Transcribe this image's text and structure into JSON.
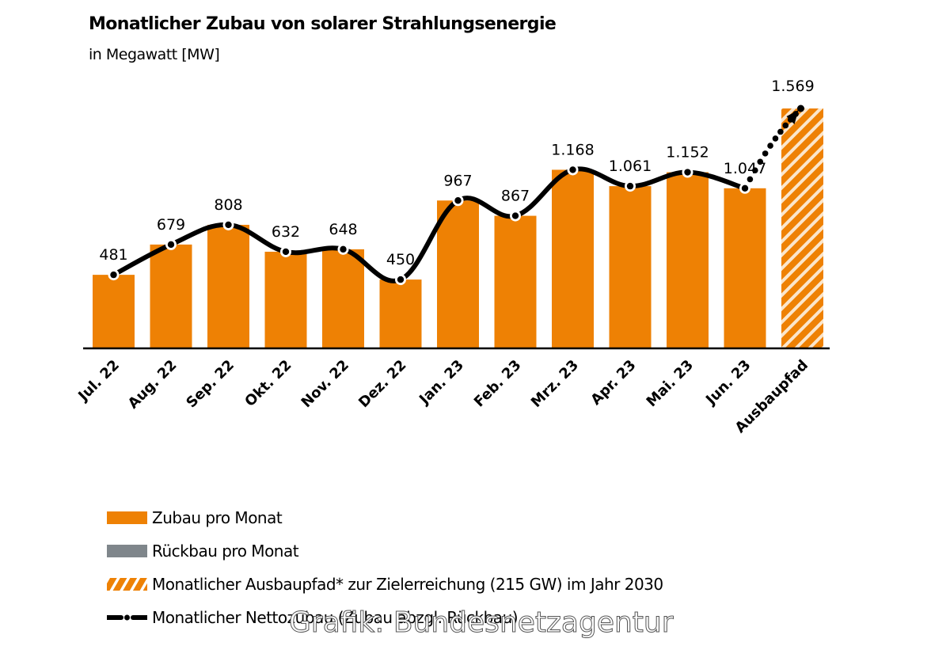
{
  "colors": {
    "zubau": "#EE8104",
    "rueckbau": "#7F868B",
    "ausbaupfad": "#EE8104",
    "line": "#000000"
  },
  "chart_data": {
    "type": "bar",
    "title": "Monatlicher Zubau von solarer Strahlungsenergie",
    "subtitle": "in Megawatt [MW]",
    "xlabel": "",
    "ylabel": "",
    "ylim": [
      0,
      1600
    ],
    "grid": false,
    "categories": [
      "Jul. 22",
      "Aug. 22",
      "Sep. 22",
      "Okt. 22",
      "Nov. 22",
      "Dez. 22",
      "Jan. 23",
      "Feb. 23",
      "Mrz. 23",
      "Apr. 23",
      "Mai. 23",
      "Jun. 23",
      "Ausbaupfad"
    ],
    "series": [
      {
        "name": "Zubau pro Monat",
        "values": [
          481,
          679,
          808,
          632,
          648,
          450,
          967,
          867,
          1168,
          1061,
          1152,
          1047,
          null
        ]
      },
      {
        "name": "Monatlicher Ausbaupfad* zur Zielerreichung (215 GW) im Jahr 2030",
        "values": [
          null,
          null,
          null,
          null,
          null,
          null,
          null,
          null,
          null,
          null,
          null,
          null,
          1569
        ]
      },
      {
        "name": "Monatlicher Nettozubau (Zubau abzgl. Rückbau)",
        "values": [
          481,
          679,
          808,
          632,
          648,
          450,
          967,
          867,
          1168,
          1061,
          1152,
          1047,
          1569
        ]
      }
    ],
    "data_labels": [
      "481",
      "679",
      "808",
      "632",
      "648",
      "450",
      "967",
      "867",
      "1.168",
      "1.061",
      "1.152",
      "1.047",
      "1.569"
    ],
    "legend_position": "bottom-left"
  },
  "legend": [
    {
      "label": "Zubau pro Monat",
      "type": "solid-orange"
    },
    {
      "label": "Rückbau pro Monat",
      "type": "solid-gray"
    },
    {
      "label": "Monatlicher Ausbaupfad* zur Zielerreichung (215 GW) im Jahr 2030",
      "type": "hatched-orange"
    },
    {
      "label": "Monatlicher Nettozubau (Zubau abzgl. Rückbau)",
      "type": "line-marker"
    }
  ],
  "watermark": "Grafik: Bundesnetzagentur"
}
